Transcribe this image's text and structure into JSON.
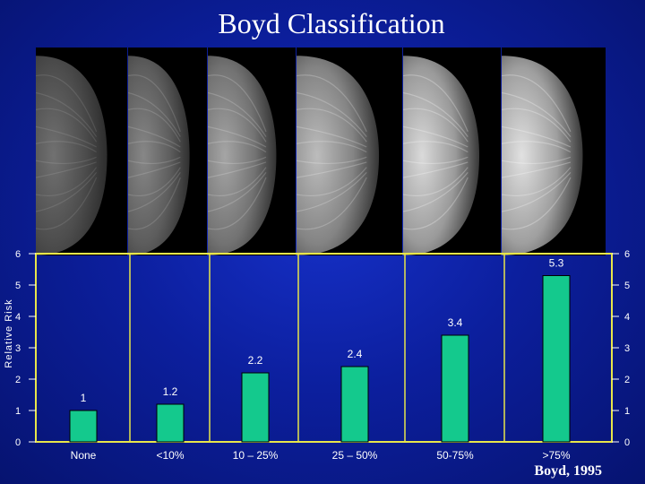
{
  "slide": {
    "title": "Boyd Classification",
    "citation": "Boyd, 1995",
    "panels": [
      {
        "name": "None",
        "density": 0.15
      },
      {
        "name": "<10%",
        "density": 0.3
      },
      {
        "name": "10 – 25%",
        "density": 0.5
      },
      {
        "name": "25 – 50%",
        "density": 0.65
      },
      {
        "name": "50-75%",
        "density": 0.85
      },
      {
        "name": ">75%",
        "density": 0.9
      }
    ]
  },
  "colors": {
    "background": "#0c1f9e",
    "bar": "#14c98d",
    "frame": "#e8e64a",
    "text": "#ffffff"
  },
  "chart_data": {
    "type": "bar",
    "title": "",
    "xlabel": "",
    "ylabel": "Relative Risk",
    "categories": [
      "None",
      "<10%",
      "10 – 25%",
      "25 – 50%",
      "50-75%",
      ">75%"
    ],
    "values": [
      1,
      1.2,
      2.2,
      2.4,
      3.4,
      5.3
    ],
    "data_labels": [
      "1",
      "1.2",
      "2.2",
      "2.4",
      "3.4",
      "5.3"
    ],
    "ylim": [
      0,
      6
    ],
    "yticks": [
      0,
      1,
      2,
      3,
      4,
      5,
      6
    ],
    "grid": false,
    "legend": "none",
    "right_axis_ticks": [
      0,
      1,
      2,
      3,
      4,
      5,
      6
    ]
  }
}
